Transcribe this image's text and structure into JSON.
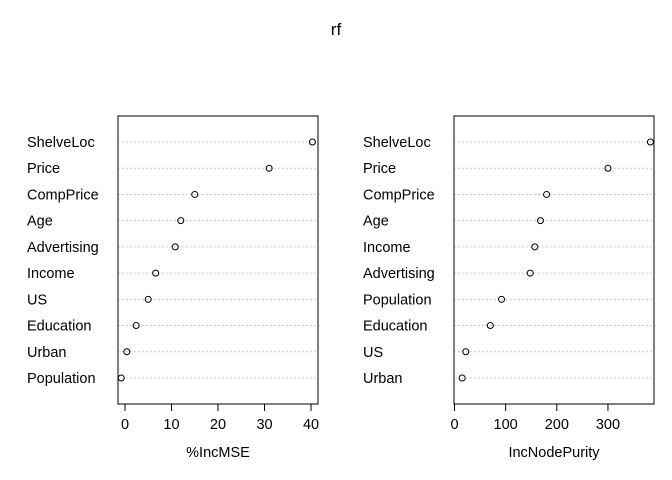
{
  "title": "rf",
  "chart_data": [
    {
      "type": "scatter",
      "style": "dotchart",
      "xlabel": "%IncMSE",
      "xlim": [
        -1.5,
        41.5
      ],
      "xticks": [
        0,
        10,
        20,
        30,
        40
      ],
      "grid": "dotted horizontal",
      "categories": [
        "ShelveLoc",
        "Price",
        "CompPrice",
        "Age",
        "Advertising",
        "Income",
        "US",
        "Education",
        "Urban",
        "Population"
      ],
      "values": [
        40.3,
        31.0,
        15.0,
        12.0,
        10.8,
        6.6,
        5.0,
        2.4,
        0.4,
        -0.8
      ]
    },
    {
      "type": "scatter",
      "style": "dotchart",
      "xlabel": "IncNodePurity",
      "xlim": [
        -1,
        390
      ],
      "xticks": [
        0,
        100,
        200,
        300
      ],
      "grid": "dotted horizontal",
      "categories": [
        "ShelveLoc",
        "Price",
        "CompPrice",
        "Age",
        "Income",
        "Advertising",
        "Population",
        "Education",
        "US",
        "Urban"
      ],
      "values": [
        383,
        300,
        180,
        168,
        157,
        148,
        92,
        70,
        22,
        15
      ]
    }
  ]
}
